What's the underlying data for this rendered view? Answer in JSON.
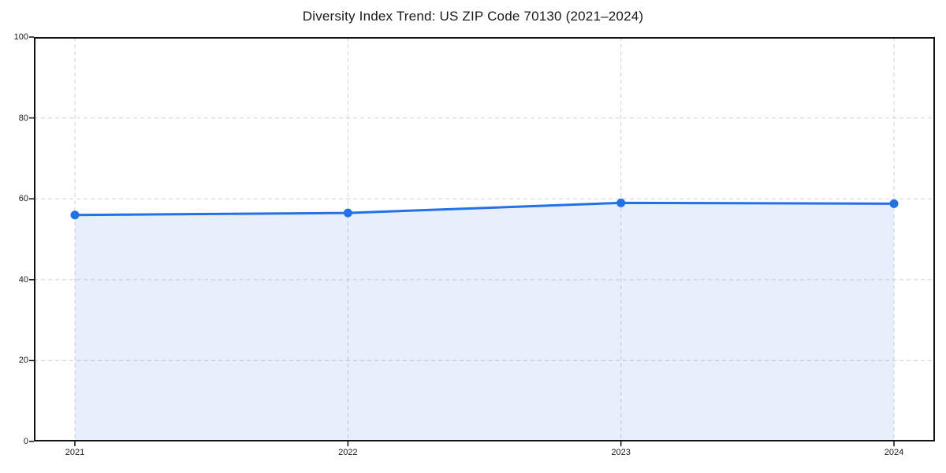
{
  "chart_data": {
    "type": "area",
    "title": "Diversity Index Trend: US ZIP Code 70130 (2021–2024)",
    "x_tick_labels": [
      "2021",
      "2022",
      "2023",
      "2024"
    ],
    "series": [
      {
        "name": "Diversity Index",
        "values": [
          56,
          56.5,
          59,
          58.8
        ]
      }
    ],
    "y_ticks": [
      0,
      20,
      40,
      60,
      80,
      100
    ],
    "ylim": [
      0,
      100
    ],
    "xlabel": "",
    "ylabel": "",
    "grid": true,
    "legend_position": "none",
    "colors": {
      "line": "#2271e5",
      "marker": "#2271e5",
      "fill": "rgba(34,113,229,0.11)",
      "gridline": "#d9d9d9",
      "axis": "#111111",
      "text": "#1a1a1a",
      "background": "#ffffff"
    },
    "x_edge_padding_frac": 0.0455
  }
}
